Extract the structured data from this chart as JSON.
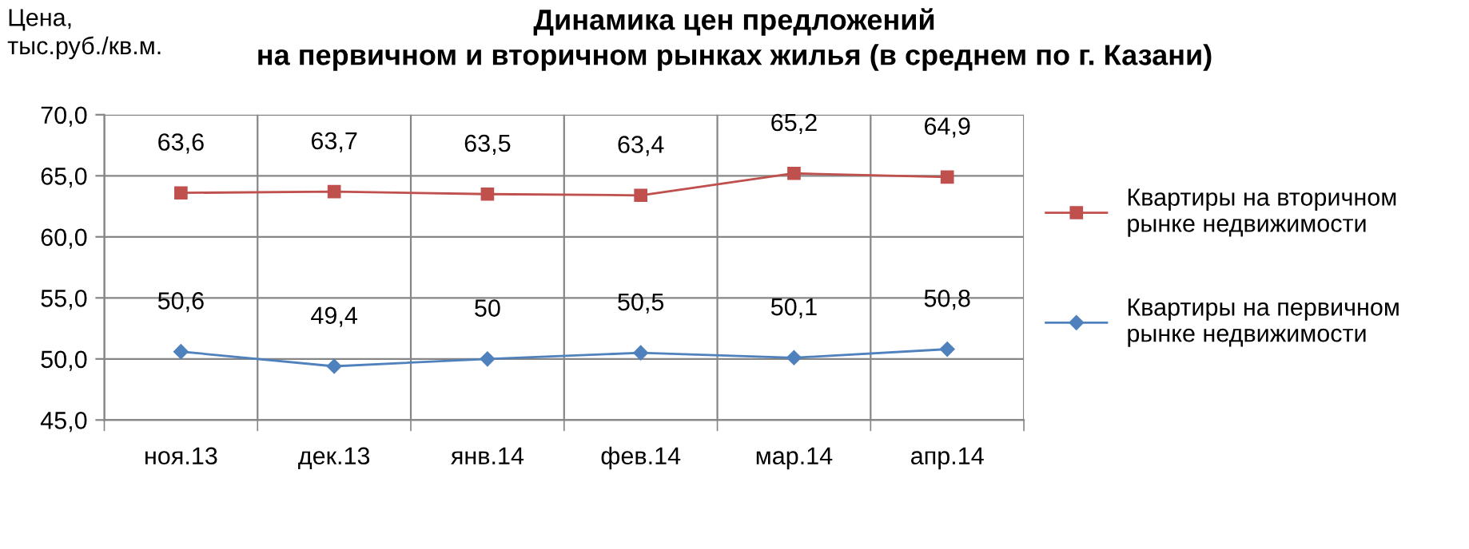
{
  "chart_data": {
    "type": "line",
    "title": "Динамика цен предложений\nна первичном и вторичном рынках жилья (в среднем по г. Казани)",
    "ylabel": "Цена,\nтыс.руб./кв.м.",
    "categories": [
      "ноя.13",
      "дек.13",
      "янв.14",
      "фев.14",
      "мар.14",
      "апр.14"
    ],
    "series": [
      {
        "name": "Квартиры на вторичном\nрынке недвижимости",
        "color": "#c0504d",
        "marker": "square",
        "values": [
          63.6,
          63.7,
          63.5,
          63.4,
          65.2,
          64.9
        ],
        "value_labels": [
          "63,6",
          "63,7",
          "63,5",
          "63,4",
          "65,2",
          "64,9"
        ]
      },
      {
        "name": "Квартиры на первичном\nрынке недвижимости",
        "color": "#4f81bd",
        "marker": "diamond",
        "values": [
          50.6,
          49.4,
          50,
          50.5,
          50.1,
          50.8
        ],
        "value_labels": [
          "50,6",
          "49,4",
          "50",
          "50,5",
          "50,1",
          "50,8"
        ]
      }
    ],
    "ylim": [
      45,
      70
    ],
    "yticks": [
      {
        "value": 45,
        "label": "45,0"
      },
      {
        "value": 50,
        "label": "50,0"
      },
      {
        "value": 55,
        "label": "55,0"
      },
      {
        "value": 60,
        "label": "60,0"
      },
      {
        "value": 65,
        "label": "65,0"
      },
      {
        "value": 70,
        "label": "70,0"
      }
    ],
    "grid": true,
    "legend": "right",
    "line_style": "solid"
  }
}
